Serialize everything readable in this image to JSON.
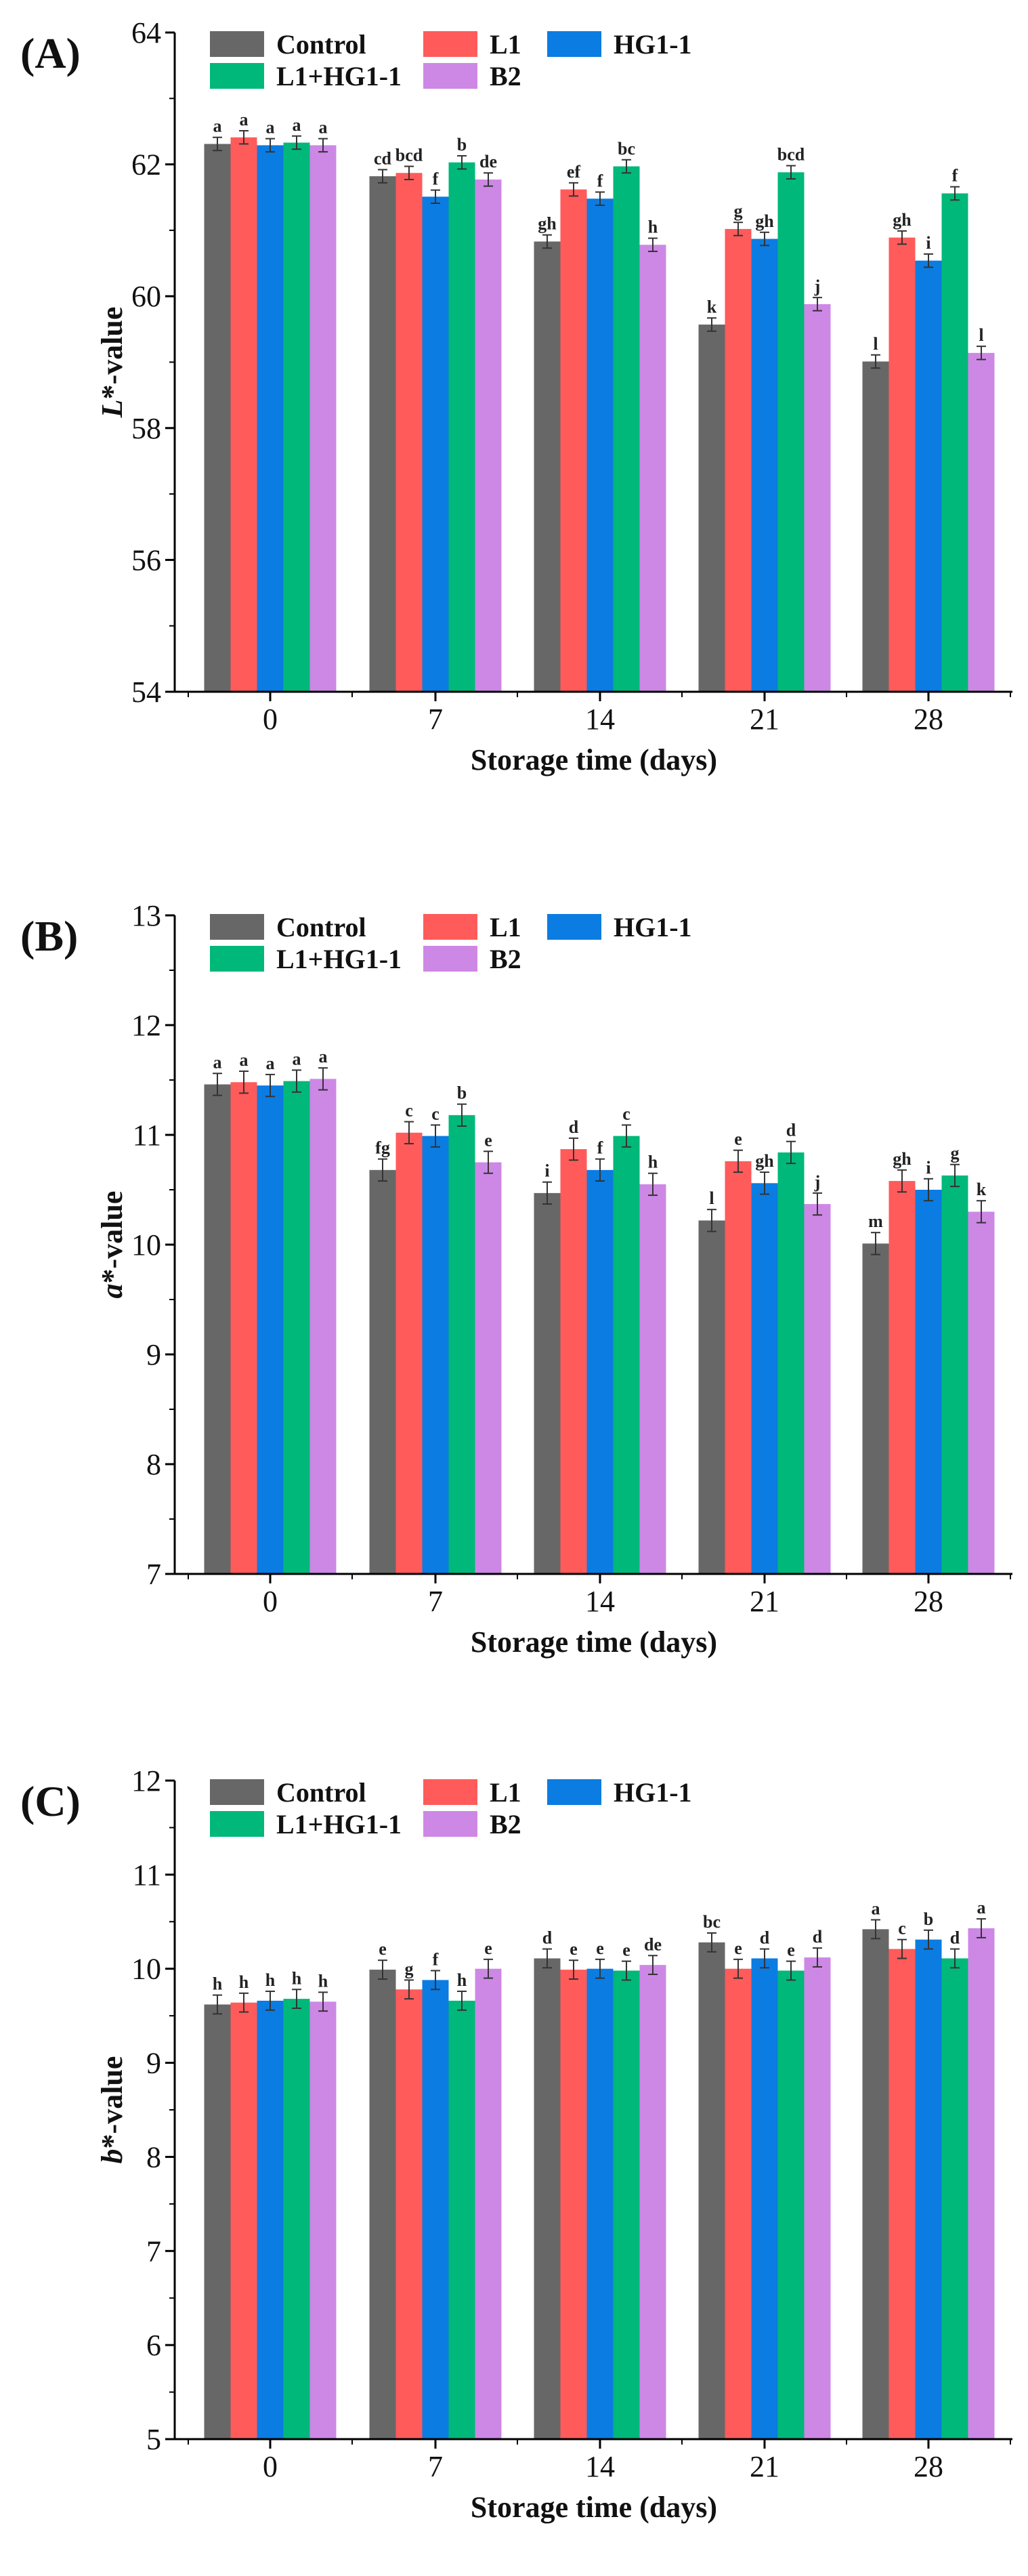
{
  "series": [
    {
      "name": "Control",
      "color": "#676767"
    },
    {
      "name": "L1",
      "color": "#FF5B5B"
    },
    {
      "name": "HG1-1",
      "color": "#0B7CE2"
    },
    {
      "name": "L1+HG1-1",
      "color": "#00B879"
    },
    {
      "name": "B2",
      "color": "#CD88E5"
    }
  ],
  "chart_data": [
    {
      "type": "bar",
      "panel_label": "(A)",
      "ylabel_italic": "L",
      "ylabel_rest": "*-value",
      "xlabel": "Storage time (days)",
      "categories": [
        "0",
        "7",
        "14",
        "21",
        "28"
      ],
      "ylim": [
        54,
        64
      ],
      "yticks": [
        "54",
        "56",
        "58",
        "60",
        "62",
        "64"
      ],
      "error": 0.1,
      "values": {
        "Control": [
          62.31,
          61.82,
          60.83,
          59.57,
          59.01
        ],
        "L1": [
          62.41,
          61.87,
          61.62,
          61.02,
          60.89
        ],
        "HG1-1": [
          62.29,
          61.51,
          61.48,
          60.87,
          60.54
        ],
        "L1+HG1-1": [
          62.33,
          62.03,
          61.97,
          61.88,
          61.56
        ],
        "B2": [
          62.29,
          61.77,
          60.78,
          59.88,
          59.14
        ]
      },
      "letters": {
        "Control": [
          "a",
          "cd",
          "gh",
          "k",
          "l"
        ],
        "L1": [
          "a",
          "bcd",
          "ef",
          "g",
          "gh"
        ],
        "HG1-1": [
          "a",
          "f",
          "f",
          "gh",
          "i"
        ],
        "L1+HG1-1": [
          "a",
          "b",
          "bc",
          "bcd",
          "f"
        ],
        "B2": [
          "a",
          "de",
          "h",
          "j",
          "l"
        ]
      }
    },
    {
      "type": "bar",
      "panel_label": "(B)",
      "ylabel_italic": "a",
      "ylabel_rest": "*-value",
      "xlabel": "Storage time (days)",
      "categories": [
        "0",
        "7",
        "14",
        "21",
        "28"
      ],
      "ylim": [
        7,
        13
      ],
      "yticks": [
        "7",
        "8",
        "9",
        "10",
        "11",
        "12",
        "13"
      ],
      "error": 0.1,
      "values": {
        "Control": [
          11.46,
          10.68,
          10.47,
          10.22,
          10.01
        ],
        "L1": [
          11.48,
          11.02,
          10.87,
          10.76,
          10.58
        ],
        "HG1-1": [
          11.45,
          10.99,
          10.68,
          10.56,
          10.5
        ],
        "L1+HG1-1": [
          11.49,
          11.18,
          10.99,
          10.84,
          10.63
        ],
        "B2": [
          11.51,
          10.75,
          10.55,
          10.37,
          10.3
        ]
      },
      "letters": {
        "Control": [
          "a",
          "fg",
          "i",
          "l",
          "m"
        ],
        "L1": [
          "a",
          "c",
          "d",
          "e",
          "gh"
        ],
        "HG1-1": [
          "a",
          "c",
          "f",
          "gh",
          "i"
        ],
        "L1+HG1-1": [
          "a",
          "b",
          "c",
          "d",
          "g"
        ],
        "B2": [
          "a",
          "e",
          "h",
          "j",
          "k"
        ]
      }
    },
    {
      "type": "bar",
      "panel_label": "(C)",
      "ylabel_italic": "b",
      "ylabel_rest": "*-value",
      "xlabel": "Storage time (days)",
      "categories": [
        "0",
        "7",
        "14",
        "21",
        "28"
      ],
      "ylim": [
        5,
        12
      ],
      "yticks": [
        "5",
        "6",
        "7",
        "8",
        "9",
        "10",
        "11",
        "12"
      ],
      "error": 0.1,
      "values": {
        "Control": [
          9.62,
          9.99,
          10.11,
          10.28,
          10.42
        ],
        "L1": [
          9.64,
          9.78,
          9.99,
          10.0,
          10.21
        ],
        "HG1-1": [
          9.66,
          9.88,
          10.0,
          10.11,
          10.31
        ],
        "L1+HG1-1": [
          9.68,
          9.66,
          9.98,
          9.98,
          10.11
        ],
        "B2": [
          9.65,
          10.0,
          10.04,
          10.12,
          10.43
        ]
      },
      "letters": {
        "Control": [
          "h",
          "e",
          "d",
          "bc",
          "a"
        ],
        "L1": [
          "h",
          "g",
          "e",
          "e",
          "c"
        ],
        "HG1-1": [
          "h",
          "f",
          "e",
          "d",
          "b"
        ],
        "L1+HG1-1": [
          "h",
          "h",
          "e",
          "e",
          "d"
        ],
        "B2": [
          "h",
          "e",
          "de",
          "d",
          "a"
        ]
      }
    }
  ]
}
